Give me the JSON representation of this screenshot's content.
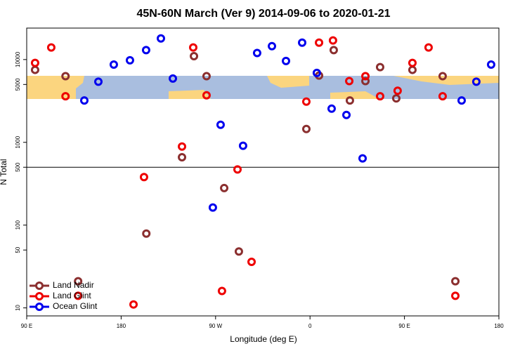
{
  "chart_data": {
    "type": "scatter",
    "title": "45N-60N March (Ver 9)   2014-09-06 to 2020-01-21",
    "xlabel": "Longitude (deg E)",
    "ylabel": "N Total",
    "xlim": [
      90,
      540
    ],
    "xticks": [
      {
        "value": 90,
        "label": "90 E"
      },
      180,
      {
        "value": 270,
        "label": "90 W"
      },
      {
        "value": 360,
        "label": "0"
      },
      {
        "value": 450,
        "label": "90 E"
      },
      {
        "value": 540,
        "label": "180"
      }
    ],
    "ylim": [
      8,
      24000
    ],
    "yticks": [
      10,
      50,
      100,
      500,
      1000,
      5000,
      10000
    ],
    "log_y": true,
    "hline": 500,
    "legend": "lower left",
    "series": [
      {
        "name": "Land Nadir",
        "color": "#8b2f2f",
        "x": [
          98,
          127,
          139,
          204,
          238,
          249.4,
          261.4,
          278.2,
          292.2,
          382.6,
          356.5,
          368.6,
          398,
          412.8,
          426.8,
          442.2,
          457.6,
          486.4,
          498.5
        ],
        "values": [
          7500,
          6300,
          21,
          79,
          660,
          11000,
          6300,
          280,
          48,
          13000,
          1450,
          6400,
          3200,
          5500,
          8100,
          3400,
          7500,
          6300,
          21
        ]
      },
      {
        "name": "Land Glint",
        "color": "#ee0000",
        "x": [
          98,
          113.4,
          127,
          139,
          191.8,
          201.8,
          238,
          248.7,
          261.4,
          276.1,
          290.9,
          304.3,
          356.5,
          368.6,
          381.9,
          397.4,
          412.8,
          426.8,
          443.5,
          457.6,
          473,
          486.4,
          498.5
        ],
        "values": [
          9100,
          14000,
          3600,
          14,
          11,
          380,
          890,
          14000,
          3700,
          16,
          470,
          36,
          3100,
          16000,
          17000,
          5500,
          6300,
          3600,
          4200,
          9100,
          14000,
          3600,
          14
        ]
      },
      {
        "name": "Ocean Glint",
        "color": "#0000ee",
        "x": [
          144.9,
          158.3,
          173,
          188.4,
          203.8,
          217.9,
          229.3,
          267.4,
          274.8,
          296.2,
          309.6,
          323.7,
          337.1,
          352.5,
          366.5,
          380.6,
          394.7,
          410.1,
          504.5,
          518.5,
          532.6
        ],
        "values": [
          3200,
          5400,
          8700,
          9800,
          13000,
          18000,
          5900,
          163,
          1630,
          910,
          12000,
          14500,
          9600,
          16000,
          6900,
          2550,
          2140,
          640,
          3200,
          5400,
          8700
        ]
      }
    ]
  }
}
